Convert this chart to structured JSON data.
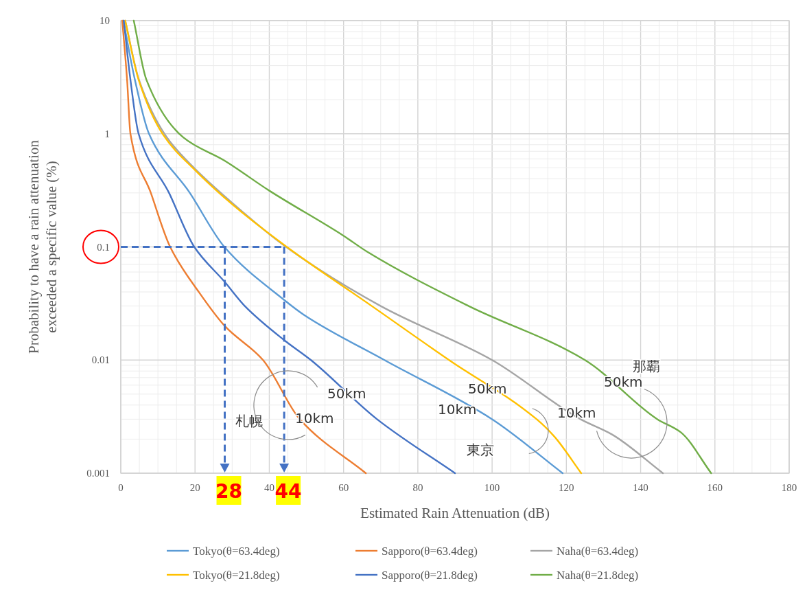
{
  "chart_data": {
    "type": "line",
    "xlabel": "Estimated  Rain  Attenuation  (dB)",
    "ylabel": "Probability to have a rain attenuation exceeded  a specific  value (%)",
    "xlim": [
      0,
      180
    ],
    "xticks": [
      0,
      20,
      40,
      60,
      80,
      100,
      120,
      140,
      160,
      180
    ],
    "ylim": [
      0.001,
      10
    ],
    "yticks": [
      0.001,
      0.01,
      0.1,
      1,
      10
    ],
    "log": "y",
    "grid": true,
    "legend": "bottom",
    "marker": "none",
    "line_style": "solid",
    "series": [
      {
        "name": "Tokyo(θ=63.4deg)",
        "color": "#5b9bd5",
        "x": [
          0.7,
          3.8,
          7.6,
          18.6,
          27.9,
          44,
          49.4,
          71,
          100,
          119
        ],
        "values": [
          10,
          3,
          1,
          0.3,
          0.1,
          0.034,
          0.025,
          0.01,
          0.003,
          0.001
        ]
      },
      {
        "name": "Sapporo(θ=63.4deg)",
        "color": "#ed7d31",
        "x": [
          0.4,
          1.7,
          2.6,
          8.1,
          13.3,
          21,
          28,
          38.3,
          48.2,
          66
        ],
        "values": [
          10,
          3,
          1,
          0.3,
          0.1,
          0.04,
          0.02,
          0.01,
          0.003,
          0.001
        ]
      },
      {
        "name": "Naha(θ=63.4deg)",
        "color": "#a5a5a5",
        "x": [
          1.2,
          4.9,
          12.2,
          20,
          30,
          44.5,
          70,
          100,
          123.8,
          132.3,
          146
        ],
        "values": [
          10,
          3,
          0.95,
          0.49,
          0.245,
          0.1,
          0.03,
          0.01,
          0.003,
          0.0022,
          0.001
        ]
      },
      {
        "name": "Tokyo(θ=21.8deg)",
        "color": "#ffc000",
        "x": [
          1.2,
          4.8,
          11.5,
          20,
          30,
          44.7,
          67.6,
          88.4,
          112,
          116.8,
          124
        ],
        "values": [
          10,
          3,
          0.97,
          0.477,
          0.238,
          0.1,
          0.03,
          0.01,
          0.003,
          0.0021,
          0.001
        ]
      },
      {
        "name": "Sapporo(θ=21.8deg)",
        "color": "#4472c4",
        "x": [
          0.8,
          2.6,
          4.8,
          13,
          19.8,
          28,
          33.4,
          44,
          51.2,
          69,
          90
        ],
        "values": [
          10,
          3,
          1,
          0.3,
          0.1,
          0.049,
          0.03,
          0.015,
          0.01,
          0.003,
          0.001
        ]
      },
      {
        "name": "Naha(θ=21.8deg)",
        "color": "#70ad47",
        "x": [
          3.5,
          6.9,
          16.8,
          27.9,
          40,
          59.9,
          66.5,
          93.7,
          125,
          144.5,
          150.8,
          159
        ],
        "values": [
          10,
          3,
          0.93,
          0.58,
          0.314,
          0.126,
          0.09,
          0.03,
          0.01,
          0.003,
          0.0023,
          0.001
        ]
      }
    ],
    "ref_lines": [
      {
        "axis": "y",
        "value": 0.1,
        "label": null,
        "color": "#4472c4",
        "line_style": "dashed"
      },
      {
        "axis": "x",
        "value": 28,
        "label": "28",
        "color": "#4472c4",
        "line_style": "dashed"
      },
      {
        "axis": "x",
        "value": 44,
        "label": "44",
        "color": "#4472c4",
        "line_style": "dashed"
      }
    ],
    "annotations": [
      "札幌",
      "50km",
      "10km",
      "東京",
      "50km",
      "10km",
      "那覇",
      "50km",
      "10km"
    ]
  }
}
